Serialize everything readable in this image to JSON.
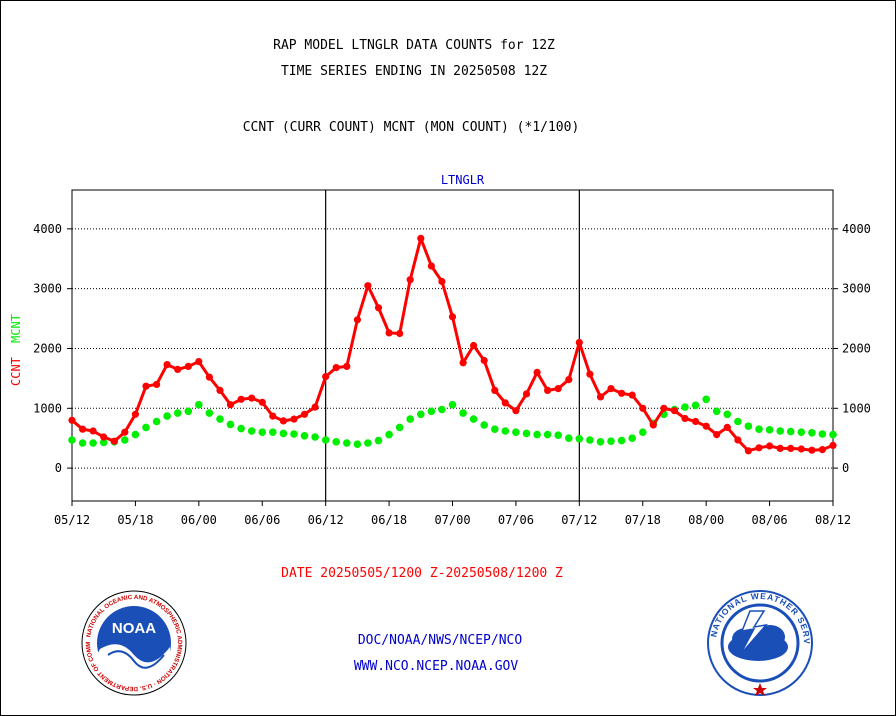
{
  "header": {
    "title_line1": "RAP MODEL LTNGLR DATA COUNTS for 12Z",
    "title_line2": "TIME SERIES ENDING IN 20250508 12Z",
    "subtitle": "CCNT (CURR COUNT) MCNT (MON COUNT) (*1/100)"
  },
  "footer": {
    "date_range": "DATE 20250505/1200 Z-20250508/1200 Z",
    "org": "DOC/NOAA/NWS/NCEP/NCO",
    "url": "WWW.NCO.NCEP.NOAA.GOV"
  },
  "logos": {
    "left_text": "NATIONAL OCEANIC AND ATMOSPHERIC ADMINISTRATION · U.S. DEPARTMENT OF COMMERCE",
    "left_center": "NOAA",
    "right_text": "NATIONAL WEATHER SERVICE"
  },
  "colors": {
    "ccnt": "#ff0000",
    "mcnt": "#00ee00",
    "panel_title": "#0000cc",
    "footer_blue": "#0000cc",
    "footer_red": "#ff0000"
  },
  "chart_data": {
    "type": "line",
    "panel_title": "LTNGLR",
    "ylabel_ccnt": "CCNT",
    "ylabel_mcnt": "MCNT",
    "x_tick_labels": [
      "05/12",
      "05/18",
      "06/00",
      "06/06",
      "06/12",
      "06/18",
      "07/00",
      "07/06",
      "07/12",
      "07/18",
      "08/00",
      "08/06",
      "08/12"
    ],
    "x_tick_hours": [
      0,
      6,
      12,
      18,
      24,
      30,
      36,
      42,
      48,
      54,
      60,
      66,
      72
    ],
    "xlim_hours": [
      0,
      72
    ],
    "x_note": "hours after 05/12 (20250505/1200 Z)",
    "y_ticks": [
      0,
      1000,
      2000,
      3000,
      4000
    ],
    "ylim": [
      -550,
      4650
    ],
    "grid": true,
    "day_separators_hours": [
      24,
      48
    ],
    "series": [
      {
        "name": "CCNT",
        "color": "#ff0000",
        "x": [
          0,
          1,
          2,
          3,
          4,
          5,
          6,
          7,
          8,
          9,
          10,
          11,
          12,
          13,
          14,
          15,
          16,
          17,
          18,
          19,
          20,
          21,
          22,
          23,
          24,
          25,
          26,
          27,
          28,
          29,
          30,
          31,
          32,
          33,
          34,
          35,
          36,
          37,
          38,
          39,
          40,
          41,
          42,
          43,
          44,
          45,
          46,
          47,
          48,
          49,
          50,
          51,
          52,
          53,
          54,
          55,
          56,
          57,
          58,
          59,
          60,
          61,
          62,
          63,
          64,
          65,
          66,
          67,
          68,
          69,
          70,
          71,
          72
        ],
        "values": [
          800,
          650,
          620,
          520,
          450,
          600,
          900,
          1370,
          1400,
          1730,
          1650,
          1700,
          1780,
          1520,
          1300,
          1060,
          1150,
          1170,
          1100,
          870,
          790,
          820,
          900,
          1020,
          1530,
          1680,
          1700,
          2480,
          3050,
          2680,
          2260,
          2250,
          3150,
          3840,
          3380,
          3120,
          2530,
          1760,
          2050,
          1800,
          1300,
          1090,
          960,
          1240,
          1600,
          1300,
          1330,
          1480,
          2100,
          1570,
          1190,
          1330,
          1250,
          1220,
          1000,
          720,
          1000,
          960,
          830,
          780,
          700,
          560,
          680,
          470,
          290,
          340,
          370,
          330,
          330,
          320,
          300,
          310,
          380
        ]
      },
      {
        "name": "MCNT",
        "color": "#00ee00",
        "x": [
          0,
          1,
          2,
          3,
          4,
          5,
          6,
          7,
          8,
          9,
          10,
          11,
          12,
          13,
          14,
          15,
          16,
          17,
          18,
          19,
          20,
          21,
          22,
          23,
          24,
          25,
          26,
          27,
          28,
          29,
          30,
          31,
          32,
          33,
          34,
          35,
          36,
          37,
          38,
          39,
          40,
          41,
          42,
          43,
          44,
          45,
          46,
          47,
          48,
          49,
          50,
          51,
          52,
          53,
          54,
          55,
          56,
          57,
          58,
          59,
          60,
          61,
          62,
          63,
          64,
          65,
          66,
          67,
          68,
          69,
          70,
          71,
          72
        ],
        "values": [
          470,
          420,
          420,
          430,
          440,
          470,
          560,
          680,
          780,
          870,
          920,
          950,
          1060,
          920,
          820,
          730,
          660,
          620,
          600,
          600,
          580,
          570,
          540,
          520,
          470,
          440,
          420,
          400,
          420,
          460,
          560,
          680,
          820,
          900,
          950,
          980,
          1060,
          920,
          820,
          720,
          650,
          620,
          600,
          580,
          560,
          560,
          550,
          500,
          490,
          470,
          440,
          450,
          460,
          500,
          600,
          750,
          900,
          980,
          1020,
          1050,
          1150,
          950,
          900,
          780,
          700,
          650,
          640,
          620,
          610,
          600,
          590,
          570,
          560
        ]
      }
    ]
  }
}
